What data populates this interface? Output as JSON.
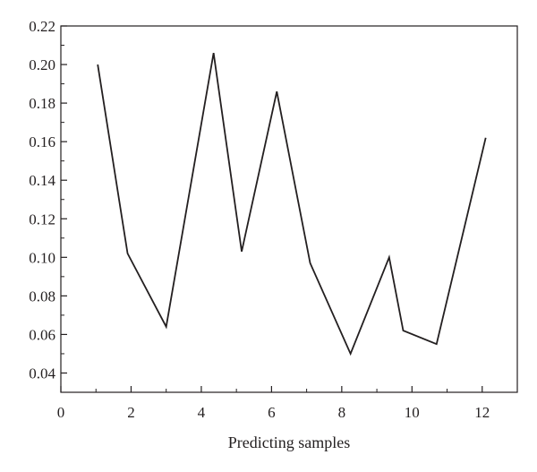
{
  "chart_data": {
    "type": "line",
    "title": "",
    "xlabel": "Predicting samples",
    "ylabel": "",
    "xlim": [
      0,
      13
    ],
    "ylim": [
      0.03,
      0.22
    ],
    "x_ticks": [
      0,
      2,
      4,
      6,
      8,
      10,
      12
    ],
    "x_tick_labels": [
      "0",
      "2",
      "4",
      "6",
      "8",
      "10",
      "12"
    ],
    "y_ticks": [
      0.04,
      0.06,
      0.08,
      0.1,
      0.12,
      0.14,
      0.16,
      0.18,
      0.2,
      0.22
    ],
    "y_tick_labels": [
      "0.04",
      "0.06",
      "0.08",
      "0.10",
      "0.12",
      "0.14",
      "0.16",
      "0.18",
      "0.20",
      "0.22"
    ],
    "grid": false,
    "series": [
      {
        "x": [
          1.05,
          1.9,
          3.0,
          4.35,
          5.15,
          6.15,
          7.1,
          8.25,
          9.35,
          9.75,
          10.7,
          12.1
        ],
        "y": [
          0.2,
          0.102,
          0.064,
          0.206,
          0.103,
          0.186,
          0.097,
          0.05,
          0.1,
          0.062,
          0.055,
          0.162
        ]
      }
    ],
    "line_color": "#231f20"
  }
}
